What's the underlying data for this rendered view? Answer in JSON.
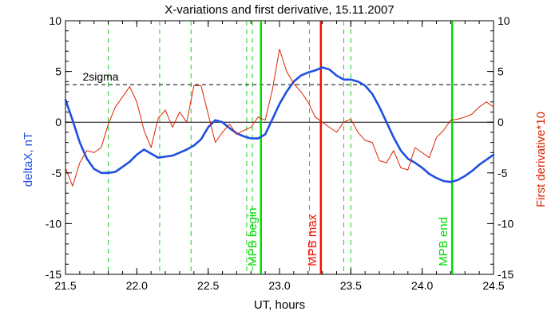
{
  "chart_data": {
    "type": "line",
    "title": "X-variations and first derivative, 15.11.2007",
    "xlabel": "UT, hours",
    "ylabel_left": "deltaX, nT",
    "ylabel_right": "First derivative*10",
    "xlim": [
      21.5,
      24.5
    ],
    "ylim": [
      -15,
      10
    ],
    "x_ticks": [
      21.5,
      22.0,
      22.5,
      23.0,
      23.5,
      24.0,
      24.5
    ],
    "y_ticks": [
      -15,
      -10,
      -5,
      0,
      5,
      10
    ],
    "zero_line": 0,
    "sigma": {
      "label": "2sigma",
      "value": 3.7
    },
    "green_dashed_x": [
      21.8,
      22.16,
      22.38,
      22.77,
      22.81,
      23.21,
      23.45,
      23.5,
      24.21
    ],
    "markers": [
      {
        "label": "MPB begin",
        "x": 22.87,
        "color": "#00dd00"
      },
      {
        "label": "MPB max",
        "x": 23.29,
        "color": "#ee1100"
      },
      {
        "label": "MPB end",
        "x": 24.21,
        "color": "#00dd00"
      }
    ],
    "series": [
      {
        "name": "deltaX, nT",
        "color": "#1f4fe0",
        "x": [
          21.5,
          21.55,
          21.6,
          21.65,
          21.7,
          21.75,
          21.8,
          21.85,
          21.9,
          21.95,
          22.0,
          22.05,
          22.1,
          22.15,
          22.2,
          22.25,
          22.3,
          22.35,
          22.4,
          22.45,
          22.5,
          22.55,
          22.6,
          22.65,
          22.7,
          22.75,
          22.8,
          22.85,
          22.9,
          22.95,
          23.0,
          23.05,
          23.1,
          23.15,
          23.2,
          23.25,
          23.3,
          23.35,
          23.4,
          23.45,
          23.5,
          23.55,
          23.6,
          23.65,
          23.7,
          23.75,
          23.8,
          23.85,
          23.9,
          23.95,
          24.0,
          24.05,
          24.1,
          24.15,
          24.2,
          24.25,
          24.3,
          24.35,
          24.4,
          24.45,
          24.5
        ],
        "values": [
          2.2,
          0.2,
          -2.0,
          -3.6,
          -4.6,
          -5.0,
          -5.0,
          -4.9,
          -4.4,
          -3.9,
          -3.2,
          -2.7,
          -3.1,
          -3.5,
          -3.4,
          -3.3,
          -3.0,
          -2.7,
          -2.3,
          -1.7,
          -0.5,
          0.2,
          0.0,
          -0.6,
          -1.1,
          -1.4,
          -1.6,
          -1.6,
          -1.2,
          0.3,
          1.8,
          3.0,
          4.0,
          4.6,
          4.9,
          5.1,
          5.4,
          5.2,
          4.6,
          4.2,
          4.2,
          4.0,
          3.6,
          2.8,
          1.5,
          0.0,
          -1.5,
          -2.8,
          -3.6,
          -4.0,
          -4.5,
          -5.1,
          -5.5,
          -5.8,
          -5.9,
          -5.7,
          -5.3,
          -4.8,
          -4.2,
          -3.7,
          -3.2
        ]
      },
      {
        "name": "First derivative*10",
        "color": "#dd2200",
        "x": [
          21.5,
          21.55,
          21.6,
          21.65,
          21.7,
          21.75,
          21.8,
          21.85,
          21.9,
          21.95,
          22.0,
          22.05,
          22.1,
          22.15,
          22.2,
          22.25,
          22.3,
          22.35,
          22.4,
          22.45,
          22.5,
          22.55,
          22.6,
          22.65,
          22.7,
          22.75,
          22.8,
          22.85,
          22.9,
          22.95,
          23.0,
          23.05,
          23.1,
          23.15,
          23.2,
          23.25,
          23.3,
          23.35,
          23.4,
          23.45,
          23.5,
          23.55,
          23.6,
          23.65,
          23.7,
          23.75,
          23.8,
          23.85,
          23.9,
          23.95,
          24.0,
          24.05,
          24.1,
          24.15,
          24.2,
          24.25,
          24.3,
          24.35,
          24.4,
          24.45,
          24.5
        ],
        "values": [
          -4.5,
          -6.3,
          -4.0,
          -2.8,
          -3.0,
          -2.5,
          -0.2,
          1.5,
          2.5,
          3.5,
          2.0,
          -0.8,
          -2.5,
          0.4,
          1.2,
          -0.5,
          1.0,
          0.0,
          3.6,
          3.6,
          0.8,
          -2.0,
          -1.0,
          -0.2,
          -1.2,
          -0.8,
          -0.5,
          0.5,
          0.2,
          3.2,
          7.2,
          5.0,
          3.8,
          3.0,
          2.0,
          0.5,
          0.0,
          -0.5,
          -1.0,
          0.0,
          0.3,
          -1.0,
          -1.8,
          -2.0,
          -3.8,
          -4.0,
          -2.8,
          -4.5,
          -4.7,
          -2.5,
          -3.0,
          -3.5,
          -1.5,
          -0.8,
          0.2,
          0.3,
          0.5,
          0.8,
          1.5,
          2.0,
          1.5
        ]
      }
    ]
  }
}
